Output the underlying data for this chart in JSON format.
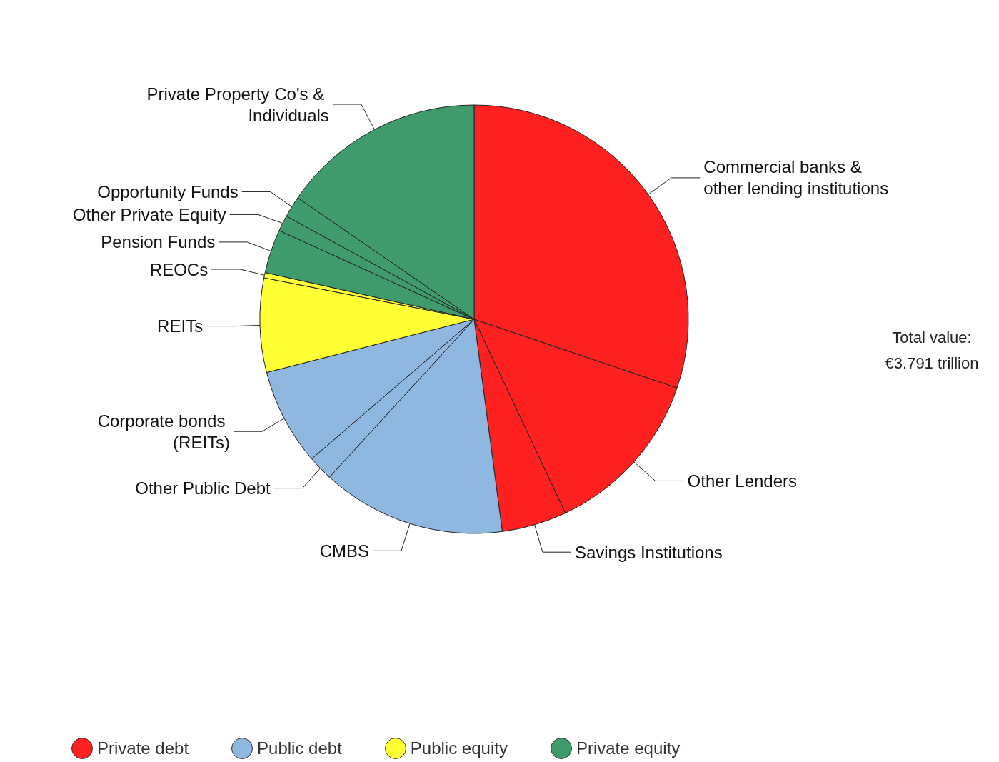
{
  "chart_data": {
    "type": "pie",
    "categories": [
      "Commercial banks & other lending institutions",
      "Other Lenders",
      "Savings Institutions",
      "CMBS",
      "Other Public Debt",
      "Corporate bonds (REITs)",
      "REITs",
      "REOCs",
      "Pension Funds",
      "Other Private Equity",
      "Opportunity Funds",
      "Private Property Co's & Individuals"
    ],
    "values": [
      30.2,
      12.8,
      4.9,
      13.9,
      1.9,
      7.3,
      7.1,
      0.4,
      3.3,
      1.2,
      1.6,
      15.4
    ],
    "colors": [
      "#ff2020",
      "#ff2020",
      "#ff2020",
      "#8fb8e0",
      "#8fb8e0",
      "#8fb8e0",
      "#ffff33",
      "#ffff33",
      "#3f9a6c",
      "#3f9a6c",
      "#3f9a6c",
      "#3f9a6c"
    ],
    "annotations": [
      "Total value:\n€3.791 trillion",
      "Private debt",
      "Public debt",
      "Public equity",
      "Private equity"
    ]
  }
}
